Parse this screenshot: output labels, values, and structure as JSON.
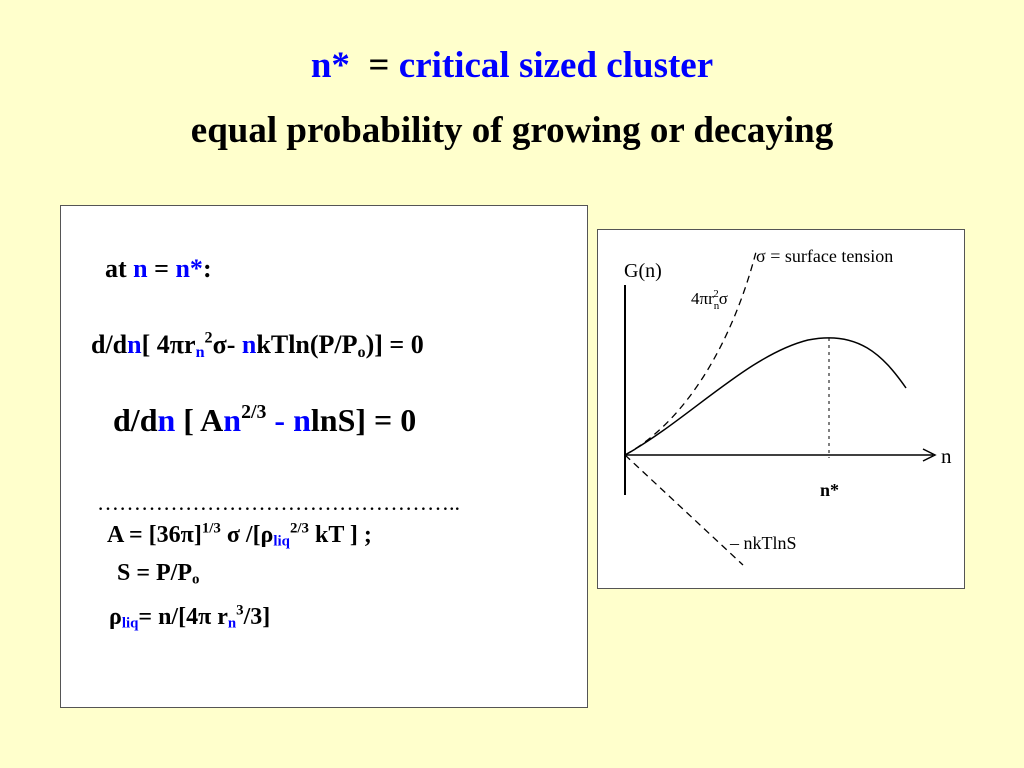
{
  "title": {
    "line1_var": "n*",
    "line1_eq": "=",
    "line1_text": "critical sized cluster",
    "line2": "equal probability of growing  or decaying"
  },
  "equations": {
    "cond": {
      "at": "at",
      "n": "n",
      "eq": "=",
      "nstar": "n*",
      "colon": ":"
    },
    "eq1": {
      "dd": "d/d",
      "n": "n",
      "bracket": "[ 4πr",
      "sub_n": "n",
      "sup2": "2",
      "sigma": "σ-",
      "n2": "n",
      "rest": "kTln(P/P",
      "sub_o": "o",
      "end": ")] = 0"
    },
    "eq2": {
      "dd": "d/d",
      "n": "n",
      "bracket": "[ A",
      "n2": "n",
      "sup": "2/3",
      "minus": "-",
      "n3": "n",
      "rest": "lnS]   = 0"
    },
    "dots": "…………………………………………..",
    "defA": {
      "pre": "A = [36π]",
      "sup13": "1/3",
      "mid": " σ /[ρ",
      "sub_liq": "liq",
      "sup23": "2/3",
      "end": " kT ] ;"
    },
    "defS": {
      "pre": "S  = P/P",
      "sub_o": "o"
    },
    "defRho": {
      "rho": "ρ",
      "sub_liq": "liq",
      "eq": "=  n/[4π r",
      "sub_n": "n",
      "sup3": "3",
      "end": "/3]"
    }
  },
  "figure": {
    "ylabel": "G(n)",
    "xlabel": "n",
    "sigma_label": "σ = surface tension",
    "surface_term": "4πr",
    "surface_sub": "n",
    "surface_sup": "2",
    "surface_sigma": "σ",
    "nstar_label": "n*",
    "bulk_label": "– nkTlnS"
  }
}
